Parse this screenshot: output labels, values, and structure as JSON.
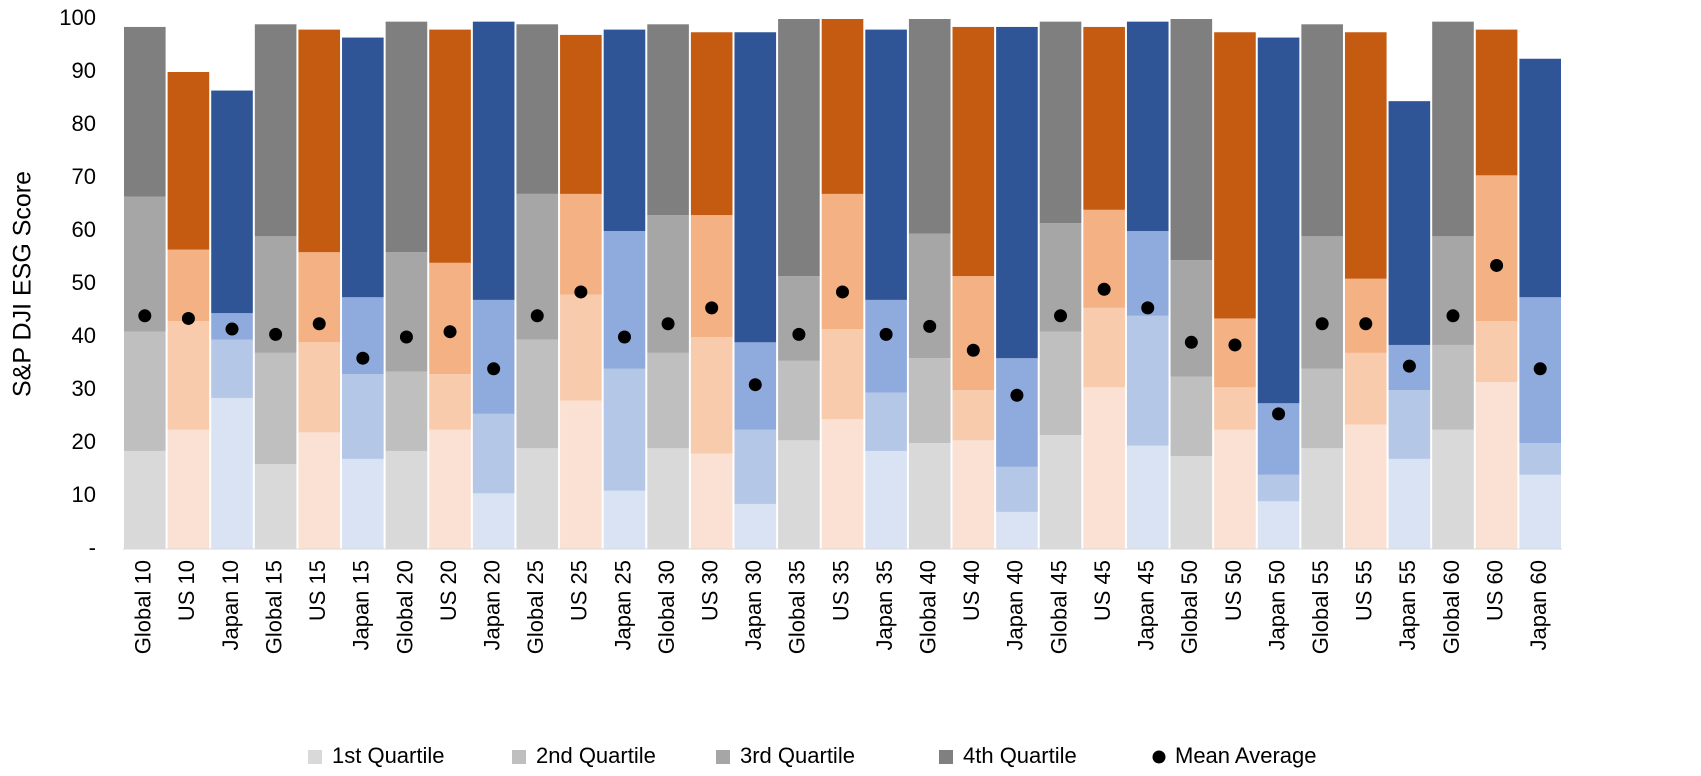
{
  "chart_data": {
    "type": "bar",
    "stacked": true,
    "y_label": "S&P DJI ESG Score",
    "categories": [
      "Global 10",
      "US 10",
      "Japan 10",
      "Global 15",
      "US 15",
      "Japan 15",
      "Global 20",
      "US 20",
      "Japan 20",
      "Global 25",
      "US 25",
      "Japan 25",
      "Global 30",
      "US 30",
      "Japan 30",
      "Global 35",
      "US 35",
      "Japan 35",
      "Global 40",
      "US 40",
      "Japan 40",
      "Global 45",
      "US 45",
      "Japan 45",
      "Global 50",
      "US 50",
      "Japan 50",
      "Global 55",
      "US 55",
      "Japan 55",
      "Global 60",
      "US 60",
      "Japan 60"
    ],
    "ylim": [
      0,
      100
    ],
    "yticks": [
      {
        "value": 0,
        "label": "-"
      },
      10,
      20,
      30,
      40,
      50,
      60,
      70,
      80,
      90,
      100
    ],
    "series": [
      {
        "name": "1st Quartile",
        "type": "bar",
        "color": "#d9d9d9",
        "colors": [
          "#d9d9d9",
          "#fbe1d3",
          "#dae3f3",
          "#d9d9d9",
          "#fbe1d3",
          "#dae3f3",
          "#d9d9d9",
          "#fbe1d3",
          "#dae3f3",
          "#d9d9d9",
          "#fbe1d3",
          "#dae3f3",
          "#d9d9d9",
          "#fbe1d3",
          "#dae3f3",
          "#d9d9d9",
          "#fbe1d3",
          "#dae3f3",
          "#d9d9d9",
          "#fbe1d3",
          "#dae3f3",
          "#d9d9d9",
          "#fbe1d3",
          "#dae3f3",
          "#d9d9d9",
          "#fbe1d3",
          "#dae3f3",
          "#d9d9d9",
          "#fbe1d3",
          "#dae3f3",
          "#d9d9d9",
          "#fbe1d3",
          "#dae3f3"
        ],
        "values": [
          18.5,
          22.5,
          28.5,
          16,
          22,
          17,
          18.5,
          22.5,
          10.5,
          19,
          28,
          11,
          19,
          18,
          8.5,
          20.5,
          24.5,
          18.5,
          20,
          20.5,
          7,
          21.5,
          30.5,
          19.5,
          17.5,
          22.5,
          9,
          19,
          23.5,
          17,
          22.5,
          31.5,
          14
        ]
      },
      {
        "name": "2nd Quartile",
        "type": "bar",
        "color": "#bfbfbf",
        "colors": [
          "#bfbfbf",
          "#f8cbad",
          "#b4c7e7",
          "#bfbfbf",
          "#f8cbad",
          "#b4c7e7",
          "#bfbfbf",
          "#f8cbad",
          "#b4c7e7",
          "#bfbfbf",
          "#f8cbad",
          "#b4c7e7",
          "#bfbfbf",
          "#f8cbad",
          "#b4c7e7",
          "#bfbfbf",
          "#f8cbad",
          "#b4c7e7",
          "#bfbfbf",
          "#f8cbad",
          "#b4c7e7",
          "#bfbfbf",
          "#f8cbad",
          "#b4c7e7",
          "#bfbfbf",
          "#f8cbad",
          "#b4c7e7",
          "#bfbfbf",
          "#f8cbad",
          "#b4c7e7",
          "#bfbfbf",
          "#f8cbad",
          "#b4c7e7"
        ],
        "values": [
          22.5,
          20.5,
          11,
          21,
          17,
          16,
          15,
          10.5,
          15,
          20.5,
          20,
          23,
          18,
          22,
          14,
          15,
          17,
          11,
          16,
          9.5,
          8.5,
          19.5,
          15,
          24.5,
          15,
          8,
          5,
          15,
          13.5,
          13,
          16,
          11.5,
          6
        ]
      },
      {
        "name": "3rd Quartile",
        "type": "bar",
        "color": "#a6a6a6",
        "colors": [
          "#a6a6a6",
          "#f4b183",
          "#8faadc",
          "#a6a6a6",
          "#f4b183",
          "#8faadc",
          "#a6a6a6",
          "#f4b183",
          "#8faadc",
          "#a6a6a6",
          "#f4b183",
          "#8faadc",
          "#a6a6a6",
          "#f4b183",
          "#8faadc",
          "#a6a6a6",
          "#f4b183",
          "#8faadc",
          "#a6a6a6",
          "#f4b183",
          "#8faadc",
          "#a6a6a6",
          "#f4b183",
          "#8faadc",
          "#a6a6a6",
          "#f4b183",
          "#8faadc",
          "#a6a6a6",
          "#f4b183",
          "#8faadc",
          "#a6a6a6",
          "#f4b183",
          "#8faadc"
        ],
        "values": [
          25.5,
          13.5,
          5,
          22,
          17,
          14.5,
          22.5,
          21,
          21.5,
          27.5,
          19,
          26,
          26,
          23,
          16.5,
          16,
          25.5,
          17.5,
          23.5,
          21.5,
          20.5,
          20.5,
          18.5,
          16,
          22,
          13,
          13.5,
          25,
          14,
          8.5,
          20.5,
          27.5,
          27.5
        ]
      },
      {
        "name": "4th Quartile",
        "type": "bar",
        "color": "#808080",
        "colors": [
          "#7f7f7f",
          "#c55a11",
          "#2f5597",
          "#7f7f7f",
          "#c55a11",
          "#2f5597",
          "#7f7f7f",
          "#c55a11",
          "#2f5597",
          "#7f7f7f",
          "#c55a11",
          "#2f5597",
          "#7f7f7f",
          "#c55a11",
          "#2f5597",
          "#7f7f7f",
          "#c55a11",
          "#2f5597",
          "#7f7f7f",
          "#c55a11",
          "#2f5597",
          "#7f7f7f",
          "#c55a11",
          "#2f5597",
          "#7f7f7f",
          "#c55a11",
          "#2f5597",
          "#7f7f7f",
          "#c55a11",
          "#2f5597",
          "#7f7f7f",
          "#c55a11",
          "#2f5597"
        ],
        "values": [
          32,
          33.5,
          42,
          40,
          42,
          49,
          43.5,
          44,
          52.5,
          32,
          30,
          38,
          36,
          34.5,
          58.5,
          48.5,
          33,
          51,
          40.5,
          47,
          62.5,
          38,
          34.5,
          39.5,
          45.5,
          54,
          69,
          40,
          46.5,
          46,
          40.5,
          27.5,
          45
        ]
      },
      {
        "name": "Mean Average",
        "type": "scatter",
        "color": "#000000",
        "values": [
          44,
          43.5,
          41.5,
          40.5,
          42.5,
          36,
          40,
          41,
          34,
          44,
          48.5,
          40,
          42.5,
          45.5,
          31,
          40.5,
          48.5,
          40.5,
          42,
          37.5,
          29,
          44,
          49,
          45.5,
          39,
          38.5,
          25.5,
          42.5,
          42.5,
          34.5,
          44,
          53.5,
          34
        ]
      }
    ]
  }
}
